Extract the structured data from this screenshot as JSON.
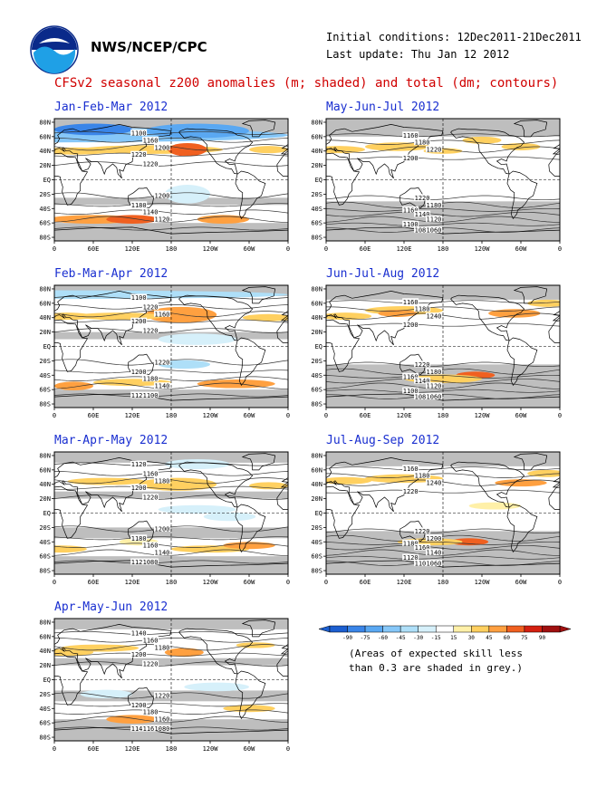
{
  "header": {
    "org": "NWS/NCEP/CPC",
    "initial_conditions": "Initial conditions: 12Dec2011-21Dec2011",
    "last_update": "Last update: Thu Jan 12 2012",
    "title": "CFSv2 seasonal z200 anomalies (m; shaded) and total (dm; contours)"
  },
  "logo": {
    "name": "noaa-logo",
    "text": "NOAA"
  },
  "axes": {
    "lat_labels": [
      "80N",
      "60N",
      "40N",
      "20N",
      "EQ",
      "20S",
      "40S",
      "60S",
      "80S"
    ],
    "lon_labels": [
      "0",
      "60E",
      "120E",
      "180",
      "120W",
      "60W",
      "0"
    ]
  },
  "colors": {
    "grey_low_skill": "#bebebe",
    "land_outline": "#000000",
    "contour": "#333333"
  },
  "panels": [
    {
      "title": "Jan-Feb-Mar 2012",
      "contours": [
        "1100",
        "1160",
        "1200",
        "1220",
        "1220",
        "1200",
        "1180",
        "1140",
        "1120"
      ]
    },
    {
      "title": "Feb-Mar-Apr 2012",
      "contours": [
        "1100",
        "1220",
        "1160",
        "1200",
        "1220",
        "1220",
        "1200",
        "1180",
        "1140",
        "1120",
        "1100"
      ]
    },
    {
      "title": "Mar-Apr-May 2012",
      "contours": [
        "1120",
        "1160",
        "1180",
        "1200",
        "1220",
        "1200",
        "1180",
        "1160",
        "1140",
        "1120",
        "1080"
      ]
    },
    {
      "title": "Apr-May-Jun 2012",
      "contours": [
        "1140",
        "1160",
        "1180",
        "1200",
        "1220",
        "1220",
        "1200",
        "1180",
        "1160",
        "1140",
        "1160",
        "1080"
      ]
    },
    {
      "title": "May-Jun-Jul 2012",
      "contours": [
        "1160",
        "1180",
        "1220",
        "1200",
        "1220",
        "1180",
        "1160",
        "1140",
        "1120",
        "1100",
        "1080",
        "1060"
      ]
    },
    {
      "title": "Jun-Jul-Aug 2012",
      "contours": [
        "1160",
        "1180",
        "1240",
        "1200",
        "1220",
        "1180",
        "1160",
        "1140",
        "1120",
        "1100",
        "1080",
        "1060"
      ]
    },
    {
      "title": "Jul-Aug-Sep 2012",
      "contours": [
        "1160",
        "1180",
        "1240",
        "1220",
        "1220",
        "1200",
        "1180",
        "1160",
        "1140",
        "1120",
        "1100",
        "1060"
      ]
    }
  ],
  "colorbar": {
    "labels": [
      "-90",
      "-75",
      "-60",
      "-45",
      "-30",
      "-15",
      "15",
      "30",
      "45",
      "60",
      "75",
      "90"
    ],
    "colors": [
      "#1c5fd0",
      "#3a85e8",
      "#5aa8f2",
      "#86c7f8",
      "#aedff8",
      "#d6f0fa",
      "#ffffff",
      "#fff0a8",
      "#ffd060",
      "#ffa040",
      "#f06020",
      "#d42010",
      "#a01010"
    ]
  },
  "note": {
    "line1": "(Areas of expected skill less",
    "line2": "than 0.3 are shaded in grey.)"
  }
}
